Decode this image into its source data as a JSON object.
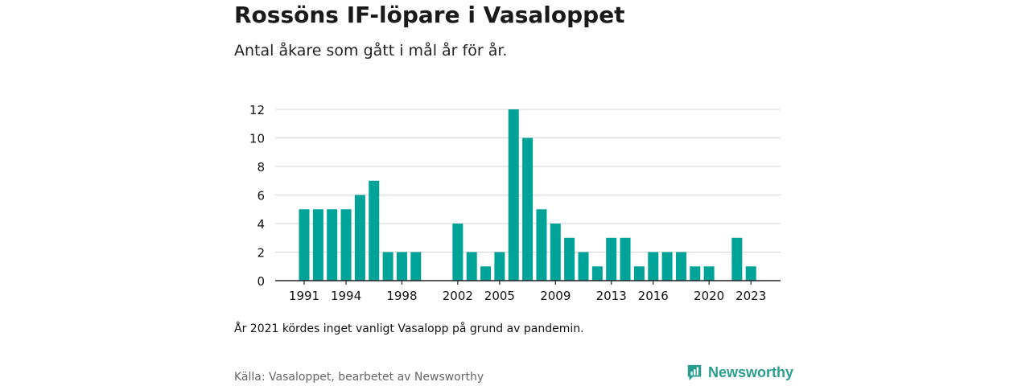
{
  "title": "Rossöns IF-löpare i Vasaloppet",
  "subtitle": "Antal åkare som gått i mål år för år.",
  "note": "År 2021 kördes inget vanligt Vasalopp på grund av pandemin.",
  "source": "Källa: Vasaloppet, bearbetet av Newsworthy",
  "brand": {
    "name": "Newsworthy",
    "icon": "newsworthy-logo-icon",
    "color": "#2a9d8f"
  },
  "chart_data": {
    "type": "bar",
    "bar_color": "#00a398",
    "x": [
      1991,
      1992,
      1993,
      1994,
      1995,
      1996,
      1997,
      1998,
      1999,
      2000,
      2001,
      2002,
      2003,
      2004,
      2005,
      2006,
      2007,
      2008,
      2009,
      2010,
      2011,
      2012,
      2013,
      2014,
      2015,
      2016,
      2017,
      2018,
      2019,
      2020,
      2021,
      2022,
      2023
    ],
    "values": [
      5,
      5,
      5,
      5,
      6,
      7,
      2,
      2,
      2,
      0,
      0,
      4,
      2,
      1,
      2,
      12,
      10,
      5,
      4,
      3,
      2,
      1,
      3,
      3,
      1,
      2,
      2,
      2,
      1,
      1,
      0,
      3,
      1
    ],
    "x_tick_labels": [
      "1991",
      "1994",
      "1998",
      "2002",
      "2005",
      "2009",
      "2013",
      "2016",
      "2020",
      "2023"
    ],
    "y_ticks": [
      0,
      2,
      4,
      6,
      8,
      10,
      12
    ],
    "ylim": [
      0,
      12
    ],
    "grid": true
  }
}
